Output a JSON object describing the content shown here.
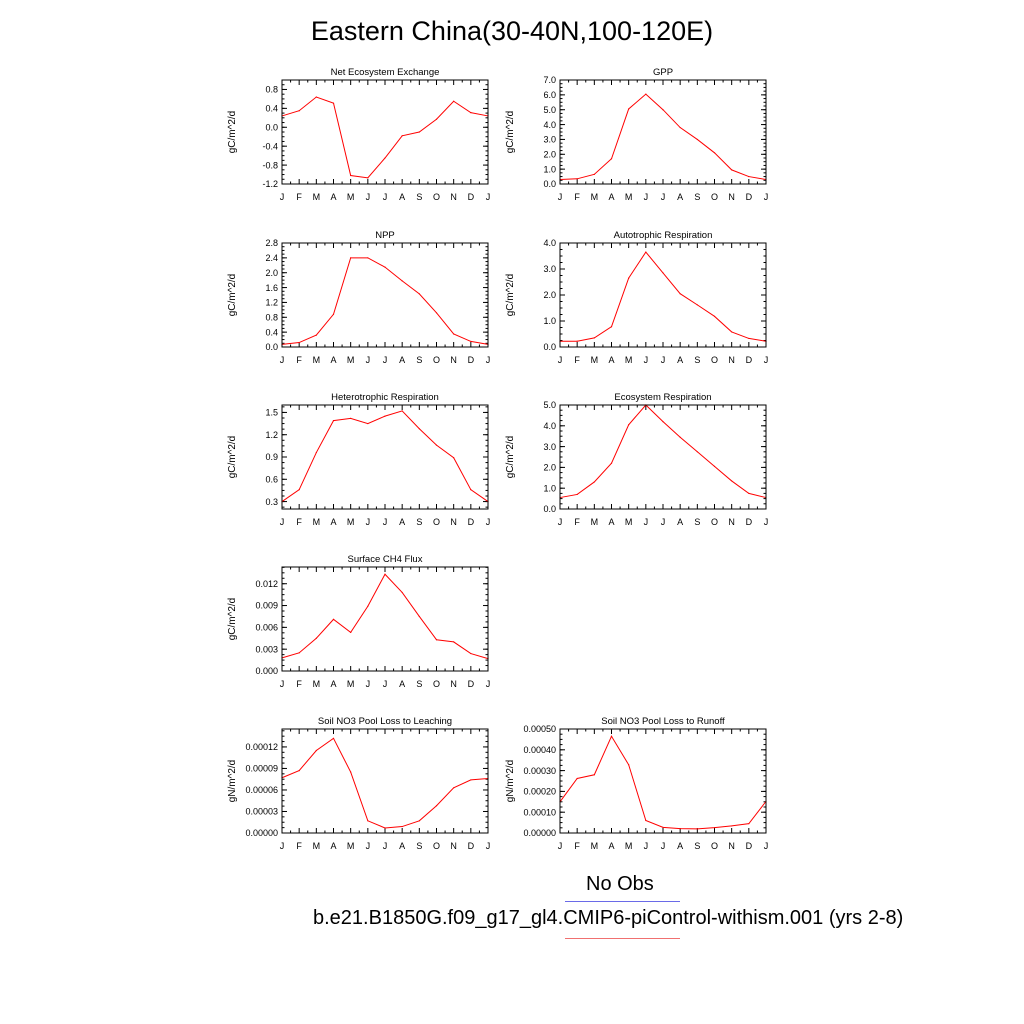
{
  "title": "Eastern China(30-40N,100-120E)",
  "colors": {
    "model_line": "#ff0000",
    "obs_line": "#0000ff",
    "axis": "#000000"
  },
  "legend": {
    "obs_label": "No Obs",
    "model_label": "b.e21.B1850G.f09_g17_gl4.CMIP6-piControl-withism.001 (yrs 2-8)"
  },
  "chart_data": [
    {
      "type": "line",
      "title": "Net Ecosystem Exchange",
      "ylabel": "gC/m^2/d",
      "categories": [
        "J",
        "F",
        "M",
        "A",
        "M",
        "J",
        "J",
        "A",
        "S",
        "O",
        "N",
        "D",
        "J"
      ],
      "ylim": [
        -1.2,
        1.0
      ],
      "yticks": [
        -1.2,
        -0.8,
        -0.4,
        0.0,
        0.4,
        0.8
      ],
      "ytick_labels": [
        "-1.2",
        "-0.8",
        "-0.4",
        "0.0",
        "0.4",
        "0.8"
      ],
      "series": [
        {
          "values": [
            0.24,
            0.35,
            0.64,
            0.51,
            -1.02,
            -1.07,
            -0.65,
            -0.18,
            -0.1,
            0.17,
            0.55,
            0.31,
            0.24
          ]
        }
      ]
    },
    {
      "type": "line",
      "title": "GPP",
      "ylabel": "gC/m^2/d",
      "categories": [
        "J",
        "F",
        "M",
        "A",
        "M",
        "J",
        "J",
        "A",
        "S",
        "O",
        "N",
        "D",
        "J"
      ],
      "ylim": [
        0.0,
        7.0
      ],
      "yticks": [
        0,
        1,
        2,
        3,
        4,
        5,
        6,
        7
      ],
      "ytick_labels": [
        "0.0",
        "1.0",
        "2.0",
        "3.0",
        "4.0",
        "5.0",
        "6.0",
        "7.0"
      ],
      "series": [
        {
          "values": [
            0.3,
            0.35,
            0.65,
            1.7,
            5.05,
            6.05,
            5.0,
            3.8,
            3.0,
            2.1,
            0.95,
            0.5,
            0.3
          ]
        }
      ]
    },
    {
      "type": "line",
      "title": "NPP",
      "ylabel": "gC/m^2/d",
      "categories": [
        "J",
        "F",
        "M",
        "A",
        "M",
        "J",
        "J",
        "A",
        "S",
        "O",
        "N",
        "D",
        "J"
      ],
      "ylim": [
        0.0,
        2.8
      ],
      "yticks": [
        0,
        0.4,
        0.8,
        1.2,
        1.6,
        2.0,
        2.4,
        2.8
      ],
      "ytick_labels": [
        "0.0",
        "0.4",
        "0.8",
        "1.2",
        "1.6",
        "2.0",
        "2.4",
        "2.8"
      ],
      "series": [
        {
          "values": [
            0.07,
            0.12,
            0.32,
            0.88,
            2.4,
            2.4,
            2.15,
            1.78,
            1.43,
            0.92,
            0.35,
            0.15,
            0.07
          ]
        }
      ]
    },
    {
      "type": "line",
      "title": "Autotrophic Respiration",
      "ylabel": "gC/m^2/d",
      "categories": [
        "J",
        "F",
        "M",
        "A",
        "M",
        "J",
        "J",
        "A",
        "S",
        "O",
        "N",
        "D",
        "J"
      ],
      "ylim": [
        0.0,
        4.0
      ],
      "yticks": [
        0,
        1,
        2,
        3,
        4
      ],
      "ytick_labels": [
        "0.0",
        "1.0",
        "2.0",
        "3.0",
        "4.0"
      ],
      "series": [
        {
          "values": [
            0.22,
            0.22,
            0.35,
            0.78,
            2.65,
            3.65,
            2.85,
            2.05,
            1.62,
            1.18,
            0.58,
            0.33,
            0.22
          ]
        }
      ]
    },
    {
      "type": "line",
      "title": "Heterotrophic Respiration",
      "ylabel": "gC/m^2/d",
      "categories": [
        "J",
        "F",
        "M",
        "A",
        "M",
        "J",
        "J",
        "A",
        "S",
        "O",
        "N",
        "D",
        "J"
      ],
      "ylim": [
        0.2,
        1.6
      ],
      "yticks": [
        0.3,
        0.6,
        0.9,
        1.2,
        1.5
      ],
      "ytick_labels": [
        "0.3",
        "0.6",
        "0.9",
        "1.2",
        "1.5"
      ],
      "series": [
        {
          "values": [
            0.3,
            0.46,
            0.96,
            1.39,
            1.42,
            1.35,
            1.45,
            1.52,
            1.28,
            1.06,
            0.89,
            0.46,
            0.3
          ]
        }
      ]
    },
    {
      "type": "line",
      "title": "Ecosystem Respiration",
      "ylabel": "gC/m^2/d",
      "categories": [
        "J",
        "F",
        "M",
        "A",
        "M",
        "J",
        "J",
        "A",
        "S",
        "O",
        "N",
        "D",
        "J"
      ],
      "ylim": [
        0.0,
        5.0
      ],
      "yticks": [
        0,
        1,
        2,
        3,
        4,
        5
      ],
      "ytick_labels": [
        "0.0",
        "1.0",
        "2.0",
        "3.0",
        "4.0",
        "5.0"
      ],
      "series": [
        {
          "values": [
            0.55,
            0.7,
            1.3,
            2.2,
            4.05,
            5.0,
            4.2,
            3.45,
            2.75,
            2.05,
            1.35,
            0.75,
            0.55
          ]
        }
      ]
    },
    {
      "type": "line",
      "title": "Surface CH4 Flux",
      "ylabel": "gC/m^2/d",
      "categories": [
        "J",
        "F",
        "M",
        "A",
        "M",
        "J",
        "J",
        "A",
        "S",
        "O",
        "N",
        "D",
        "J"
      ],
      "ylim": [
        0.0,
        0.0143
      ],
      "yticks": [
        0,
        0.003,
        0.006,
        0.009,
        0.012
      ],
      "ytick_labels": [
        "0.000",
        "0.003",
        "0.006",
        "0.009",
        "0.012"
      ],
      "series": [
        {
          "values": [
            0.0018,
            0.0025,
            0.0045,
            0.0071,
            0.0053,
            0.0089,
            0.0133,
            0.0108,
            0.0075,
            0.0043,
            0.004,
            0.0024,
            0.0017
          ]
        }
      ]
    },
    {
      "type": "line",
      "title": "Soil NO3 Pool Loss to Leaching",
      "ylabel": "gN/m^2/d",
      "categories": [
        "J",
        "F",
        "M",
        "A",
        "M",
        "J",
        "J",
        "A",
        "S",
        "O",
        "N",
        "D",
        "J"
      ],
      "ylim": [
        0.0,
        0.000145
      ],
      "yticks": [
        0,
        3e-05,
        6e-05,
        9e-05,
        0.00012
      ],
      "ytick_labels": [
        "0.00000",
        "0.00003",
        "0.00006",
        "0.00009",
        "0.00012"
      ],
      "series": [
        {
          "values": [
            7.7e-05,
            8.7e-05,
            0.000115,
            0.000132,
            8.5e-05,
            1.7e-05,
            7e-06,
            9e-06,
            1.7e-05,
            3.8e-05,
            6.3e-05,
            7.4e-05,
            7.6e-05
          ]
        }
      ]
    },
    {
      "type": "line",
      "title": "Soil NO3 Pool Loss to Runoff",
      "ylabel": "gN/m^2/d",
      "categories": [
        "J",
        "F",
        "M",
        "A",
        "M",
        "J",
        "J",
        "A",
        "S",
        "O",
        "N",
        "D",
        "J"
      ],
      "ylim": [
        0.0,
        0.0005
      ],
      "yticks": [
        0,
        0.0001,
        0.0002,
        0.0003,
        0.0004,
        0.0005
      ],
      "ytick_labels": [
        "0.00000",
        "0.00010",
        "0.00020",
        "0.00030",
        "0.00040",
        "0.00050"
      ],
      "series": [
        {
          "values": [
            0.00015,
            0.000262,
            0.00028,
            0.000465,
            0.000328,
            6e-05,
            2.7e-05,
            2.1e-05,
            2e-05,
            2.6e-05,
            3.4e-05,
            4.5e-05,
            0.000152
          ]
        }
      ]
    }
  ]
}
